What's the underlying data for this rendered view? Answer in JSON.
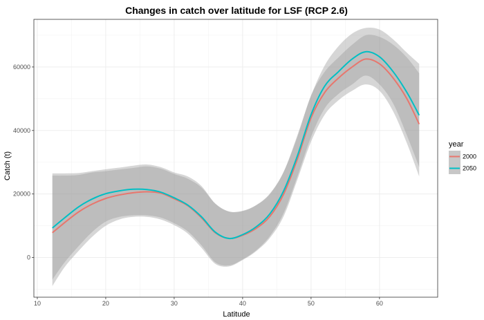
{
  "chart_data": {
    "type": "line",
    "title": "Changes in catch over latitude for LSF (RCP 2.6)",
    "xlabel": "Latitude",
    "ylabel": "Catch (t)",
    "xlim": [
      9.5,
      68.5
    ],
    "ylim": [
      -12500,
      75000
    ],
    "xticks": [
      10,
      20,
      30,
      40,
      50,
      60
    ],
    "yticks": [
      0,
      20000,
      40000,
      60000
    ],
    "ytick_labels": [
      "0",
      "20000",
      "40000",
      "60000"
    ],
    "grid": true,
    "legend": {
      "title": "year",
      "position": "right"
    },
    "x": [
      12.2,
      14,
      16,
      18,
      20,
      22,
      24,
      26,
      28,
      30,
      32,
      34,
      36,
      38,
      40,
      42,
      44,
      46,
      48,
      50,
      52,
      54,
      56,
      58,
      60,
      62,
      64,
      65.8
    ],
    "series": [
      {
        "name": "2000",
        "color": "#e8766d",
        "values": [
          7800,
          11000,
          14300,
          16800,
          18600,
          19700,
          20400,
          20700,
          20300,
          18500,
          16300,
          12500,
          7800,
          6000,
          7000,
          9200,
          13000,
          20000,
          31000,
          44000,
          52000,
          56500,
          60000,
          62500,
          61000,
          56500,
          50000,
          42000
        ],
        "upper": [
          26500,
          26500,
          26600,
          27200,
          27800,
          28300,
          28900,
          29300,
          28500,
          26800,
          25500,
          22500,
          17000,
          14500,
          14700,
          16500,
          20000,
          27000,
          38000,
          51000,
          58500,
          63000,
          67000,
          70000,
          69500,
          67000,
          63000,
          58000
        ],
        "lower": [
          -9000,
          -3000,
          2000,
          6500,
          10000,
          12000,
          12800,
          12800,
          12000,
          10200,
          7500,
          3000,
          -2000,
          -2800,
          -800,
          2000,
          6200,
          13000,
          24500,
          36500,
          45000,
          49500,
          52500,
          54500,
          52500,
          46000,
          36000,
          25500
        ]
      },
      {
        "name": "2050",
        "color": "#00bfc4",
        "values": [
          9300,
          12500,
          15900,
          18400,
          20100,
          21000,
          21500,
          21400,
          20600,
          18800,
          16500,
          12800,
          8000,
          6000,
          7200,
          9700,
          13800,
          21000,
          32000,
          45000,
          54000,
          58500,
          62500,
          64800,
          63200,
          58500,
          52000,
          44800
        ],
        "upper": [
          25800,
          25800,
          26000,
          26800,
          27200,
          27700,
          28200,
          28700,
          28000,
          26300,
          24800,
          22000,
          17000,
          14500,
          14600,
          16500,
          20200,
          27000,
          38500,
          51000,
          60500,
          66500,
          70500,
          72300,
          71800,
          68700,
          64500,
          61000
        ],
        "lower": [
          -7000,
          -1500,
          3500,
          8000,
          11300,
          12800,
          13300,
          13300,
          12600,
          10800,
          8200,
          3800,
          -1500,
          -2500,
          -600,
          2300,
          6800,
          14000,
          25500,
          38000,
          47000,
          51500,
          54500,
          57300,
          54500,
          48500,
          38500,
          28500
        ]
      }
    ]
  }
}
